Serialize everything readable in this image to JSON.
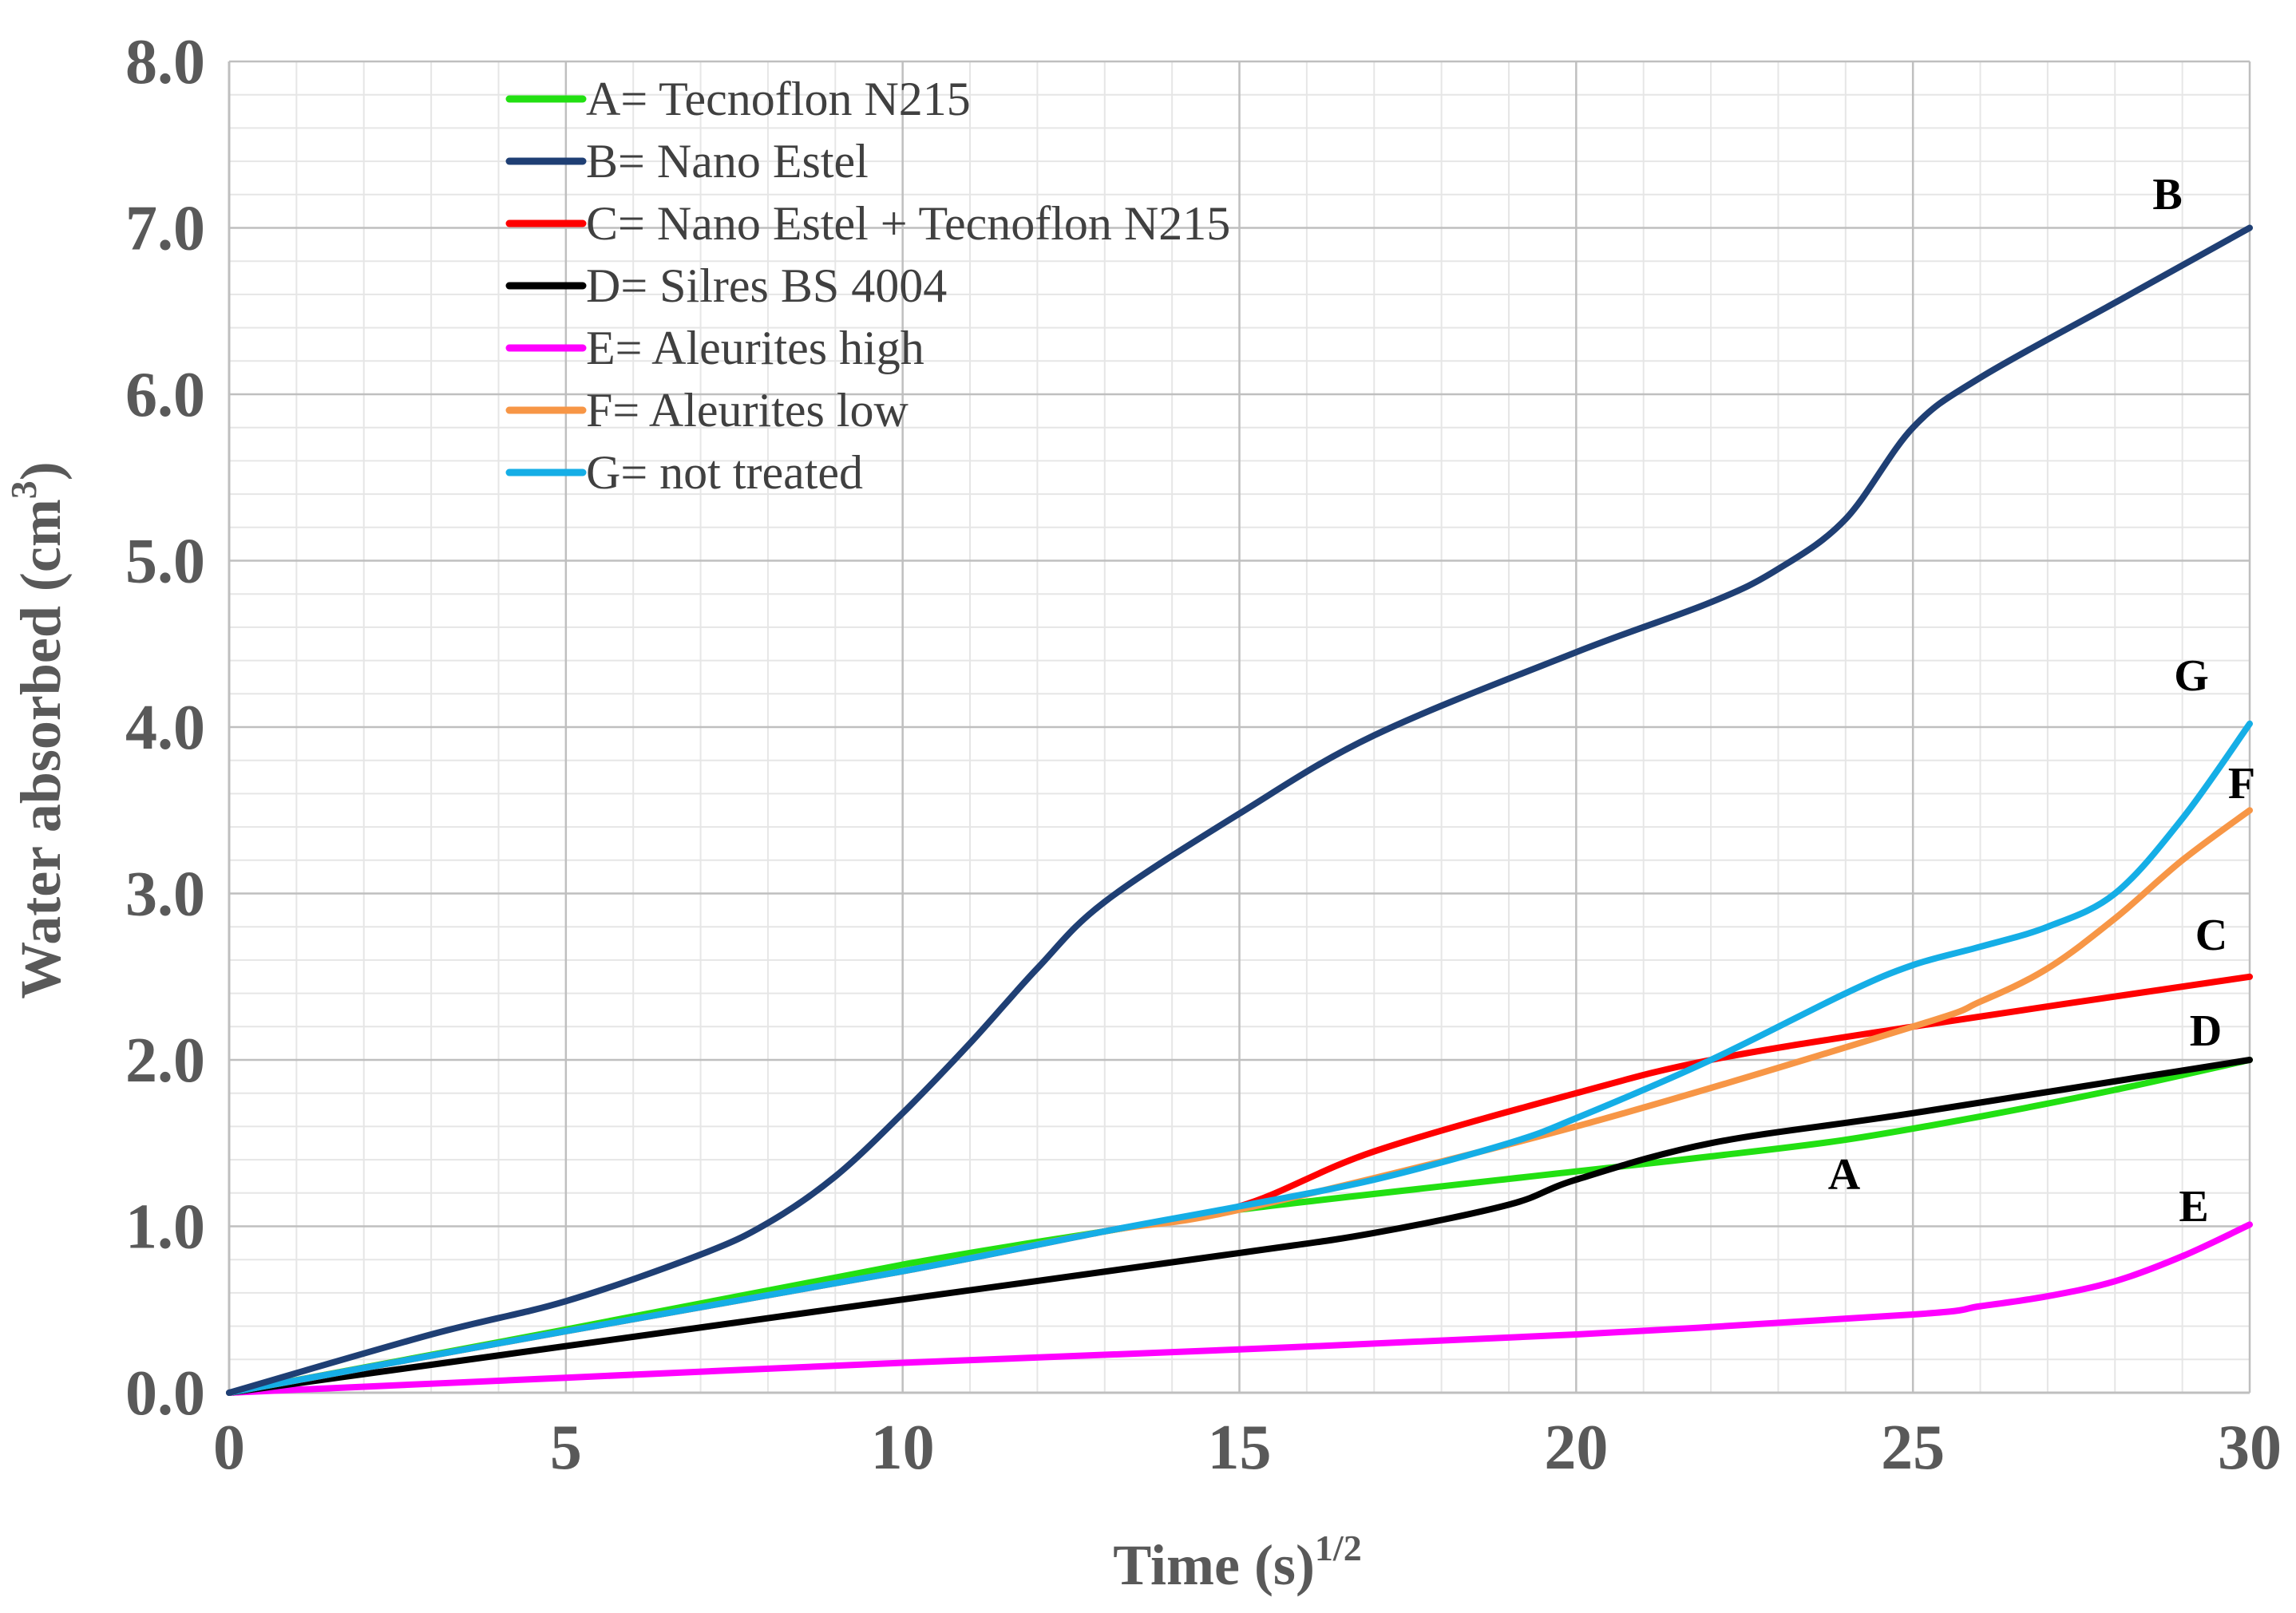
{
  "chart_data": {
    "type": "line",
    "xlabel": "Time (s)",
    "xlabel_sup": "1/2",
    "ylabel": "Water absorbed (cm",
    "ylabel_sup": "3",
    "ylabel_close": ")",
    "xlim": [
      0,
      30
    ],
    "ylim": [
      0,
      8
    ],
    "x_ticks": [
      {
        "value": 0,
        "label": "0"
      },
      {
        "value": 5,
        "label": "5"
      },
      {
        "value": 10,
        "label": "10"
      },
      {
        "value": 15,
        "label": "15"
      },
      {
        "value": 20,
        "label": "20"
      },
      {
        "value": 25,
        "label": "25"
      },
      {
        "value": 30,
        "label": "30"
      }
    ],
    "y_ticks": [
      {
        "value": 0,
        "label": "0.0"
      },
      {
        "value": 1,
        "label": "1.0"
      },
      {
        "value": 2,
        "label": "2.0"
      },
      {
        "value": 3,
        "label": "3.0"
      },
      {
        "value": 4,
        "label": "4.0"
      },
      {
        "value": 5,
        "label": "5.0"
      },
      {
        "value": 6,
        "label": "6.0"
      },
      {
        "value": 7,
        "label": "7.0"
      },
      {
        "value": 8,
        "label": "8.0"
      }
    ],
    "grid": true,
    "legend_position": "top-left",
    "series": [
      {
        "name": "A= Tecnoflon N215",
        "end_label": "A",
        "color": "#22e012",
        "x": [
          0,
          5,
          10,
          13,
          15,
          20,
          22,
          24,
          26,
          28,
          30
        ],
        "y": [
          0,
          0.38,
          0.77,
          0.97,
          1.1,
          1.33,
          1.42,
          1.52,
          1.66,
          1.82,
          2.0
        ]
      },
      {
        "name": "B= Nano Estel",
        "end_label": "B",
        "color": "#1f3f74",
        "x": [
          0,
          3,
          5,
          7,
          8,
          9,
          10,
          11,
          12,
          13,
          15,
          17,
          20,
          22,
          23,
          24,
          25,
          26,
          28,
          30
        ],
        "y": [
          0,
          0.35,
          0.55,
          0.83,
          1.02,
          1.3,
          1.68,
          2.1,
          2.55,
          2.95,
          3.48,
          3.95,
          4.45,
          4.75,
          4.95,
          5.25,
          5.8,
          6.1,
          6.55,
          7.0
        ]
      },
      {
        "name": "C= Nano Estel + Tecnoflon N215",
        "end_label": "C",
        "color": "#ff0000",
        "x": [
          0,
          5,
          10,
          13,
          15,
          17,
          20,
          22,
          25,
          30
        ],
        "y": [
          0,
          0.37,
          0.73,
          0.97,
          1.12,
          1.45,
          1.8,
          2.0,
          2.2,
          2.5
        ]
      },
      {
        "name": "D= Silres BS 4004",
        "end_label": "D",
        "color": "#000000",
        "x": [
          0,
          5,
          10,
          15,
          17,
          19,
          20,
          22,
          25,
          30
        ],
        "y": [
          0,
          0.28,
          0.56,
          0.84,
          0.96,
          1.13,
          1.28,
          1.5,
          1.68,
          2.0
        ]
      },
      {
        "name": "E= Aleurites high",
        "end_label": "E",
        "color": "#ff00ff",
        "x": [
          0,
          5,
          10,
          15,
          20,
          25,
          26,
          27,
          28,
          29,
          30
        ],
        "y": [
          0,
          0.09,
          0.18,
          0.26,
          0.35,
          0.47,
          0.52,
          0.58,
          0.67,
          0.82,
          1.01
        ]
      },
      {
        "name": "F= Aleurites low",
        "end_label": "F",
        "color": "#f79646",
        "x": [
          0,
          5,
          10,
          13,
          15,
          20,
          25,
          26,
          27,
          28,
          29,
          30
        ],
        "y": [
          0,
          0.37,
          0.73,
          0.97,
          1.1,
          1.6,
          2.2,
          2.35,
          2.55,
          2.85,
          3.2,
          3.5
        ]
      },
      {
        "name": "G= not treated",
        "end_label": "G",
        "color": "#15aee6",
        "x": [
          0,
          5,
          10,
          13,
          15,
          17,
          19,
          20,
          22,
          24,
          25,
          26,
          27,
          28,
          29,
          30
        ],
        "y": [
          0,
          0.37,
          0.73,
          0.97,
          1.12,
          1.28,
          1.5,
          1.65,
          2.0,
          2.4,
          2.57,
          2.68,
          2.8,
          3.0,
          3.45,
          4.02
        ]
      }
    ]
  }
}
